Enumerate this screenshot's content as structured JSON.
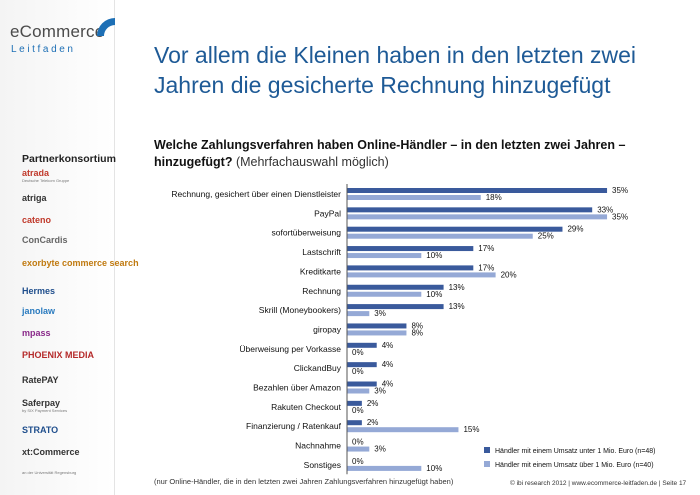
{
  "brand": {
    "line1": "eCommerce",
    "line2": "Leitfaden"
  },
  "sidebar": {
    "title": "Partnerkonsortium",
    "partners": [
      {
        "name": "atrada",
        "tag": "Deutsche Telekom Gruppe",
        "color": "#c0392b"
      },
      {
        "name": "atriga",
        "tag": "",
        "color": "#333333"
      },
      {
        "name": "cateno",
        "tag": "",
        "color": "#c0392b"
      },
      {
        "name": "ConCardis",
        "tag": "",
        "color": "#666666"
      },
      {
        "name": "exorbyte commerce search",
        "tag": "",
        "color": "#c07a10"
      },
      {
        "name": "Hermes",
        "tag": "",
        "color": "#1f4e8c"
      },
      {
        "name": "janolaw",
        "tag": "",
        "color": "#2a7bbf"
      },
      {
        "name": "mpass",
        "tag": "",
        "color": "#8a2a8a"
      },
      {
        "name": "PHOENIX MEDIA",
        "tag": "",
        "color": "#b52a2a"
      },
      {
        "name": "RatePAY",
        "tag": "",
        "color": "#333333"
      },
      {
        "name": "Saferpay",
        "tag": "by SIX Payment Services",
        "color": "#333333"
      },
      {
        "name": "STRATO",
        "tag": "",
        "color": "#1f4e8c"
      },
      {
        "name": "xt:Commerce",
        "tag": "",
        "color": "#333333"
      },
      {
        "name": "",
        "tag": "an der Universität Regensburg",
        "color": "#333333"
      }
    ]
  },
  "title": "Vor allem die Kleinen haben in den letzten zwei Jahren die gesicherte Rechnung hinzugefügt",
  "question": "Welche Zahlungsverfahren haben Online-Händler – in den letzten zwei Jahren – hinzugefügt?",
  "question_sub": "(Mehrfachauswahl möglich)",
  "footnote": "(nur Online-Händler, die in den letzten zwei Jahren Zahlungsverfahren hinzugefügt haben)",
  "footer": "© ibi research 2012 | www.ecommerce-leitfaden.de | Seite 17",
  "colors": {
    "series1": "#3a5a9c",
    "series2": "#95a9d6",
    "title": "#1e5a96"
  },
  "chart_data": {
    "type": "bar",
    "orientation": "horizontal",
    "unit": "%",
    "categories": [
      "Rechnung, gesichert über einen Dienstleister",
      "PayPal",
      "sofortüberweisung",
      "Lastschrift",
      "Kreditkarte",
      "Rechnung",
      "Skrill (Moneybookers)",
      "giropay",
      "Überweisung per Vorkasse",
      "ClickandBuy",
      "Bezahlen über Amazon",
      "Rakuten Checkout",
      "Finanzierung / Ratenkauf",
      "Nachnahme",
      "Sonstiges"
    ],
    "series": [
      {
        "name": "Händler mit einem Umsatz unter 1 Mio. Euro (n=48)",
        "values": [
          35,
          33,
          29,
          17,
          17,
          13,
          13,
          8,
          4,
          4,
          4,
          2,
          2,
          0,
          0
        ]
      },
      {
        "name": "Händler mit einem Umsatz über 1 Mio. Euro (n=40)",
        "values": [
          18,
          35,
          25,
          10,
          20,
          10,
          3,
          8,
          0,
          0,
          3,
          0,
          15,
          3,
          10
        ]
      }
    ],
    "legend_position": "bottom-right",
    "grid": false,
    "xlim": [
      0,
      40
    ]
  }
}
